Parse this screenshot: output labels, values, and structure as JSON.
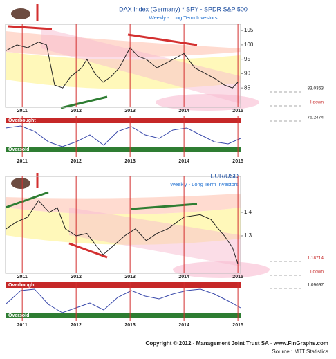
{
  "chart_data": [
    {
      "type": "line",
      "title": "DAX Index (Germany) * SPY - SPDR S&P 500",
      "subtitle": "Weekly - Long Term Investors",
      "x": [
        2010.7,
        2010.9,
        2011.1,
        2011.3,
        2011.45,
        2011.6,
        2011.75,
        2011.9,
        2012.1,
        2012.2,
        2012.35,
        2012.5,
        2012.65,
        2012.8,
        2013.0,
        2013.15,
        2013.3,
        2013.5,
        2013.7,
        2014.0,
        2014.2,
        2014.4,
        2014.6,
        2014.75,
        2014.9,
        2015.0
      ],
      "values": [
        98,
        100,
        99,
        101,
        100,
        86,
        85,
        89,
        92,
        95,
        90,
        87,
        89,
        92,
        99,
        96,
        95,
        92,
        94,
        97,
        92,
        90,
        88,
        86,
        85,
        87
      ],
      "color": "#222222",
      "xlim": [
        2010.69,
        2015.05
      ],
      "xticks": [
        2011,
        2012,
        2013,
        2014,
        2015
      ],
      "ylim": [
        78.3,
        107.2
      ],
      "yticks": [
        105,
        100,
        95,
        90,
        85
      ],
      "annotations": [
        "83.0363",
        "I down",
        "76.2474",
        "Overbought",
        "Oversold"
      ]
    },
    {
      "type": "line",
      "title": "EUR/USD",
      "subtitle": "Weekly - Long Term Investors",
      "x": [
        2010.7,
        2010.9,
        2011.1,
        2011.3,
        2011.5,
        2011.65,
        2011.8,
        2012.0,
        2012.2,
        2012.5,
        2012.7,
        2012.9,
        2013.1,
        2013.3,
        2013.5,
        2013.7,
        2014.0,
        2014.3,
        2014.5,
        2014.6,
        2014.75,
        2014.9,
        2015.0
      ],
      "values": [
        1.33,
        1.36,
        1.38,
        1.45,
        1.4,
        1.42,
        1.33,
        1.3,
        1.31,
        1.22,
        1.26,
        1.3,
        1.33,
        1.28,
        1.31,
        1.33,
        1.38,
        1.39,
        1.37,
        1.34,
        1.3,
        1.25,
        1.18
      ],
      "color": "#222222",
      "xlim": [
        2010.69,
        2015.05
      ],
      "xticks": [
        2011,
        2012,
        2013,
        2014,
        2015
      ],
      "ylim": [
        1.141,
        1.553
      ],
      "yticks": [
        1.4,
        1.3
      ],
      "annotations": [
        "1.18714",
        "I down",
        "1.09697",
        "Overbought",
        "Oversold"
      ]
    }
  ],
  "footer": {
    "copyright": "Copyright © 2012 - Management Joint Trust SA - www.FinGraphs.com",
    "source": "Source : MJT Statistics"
  }
}
